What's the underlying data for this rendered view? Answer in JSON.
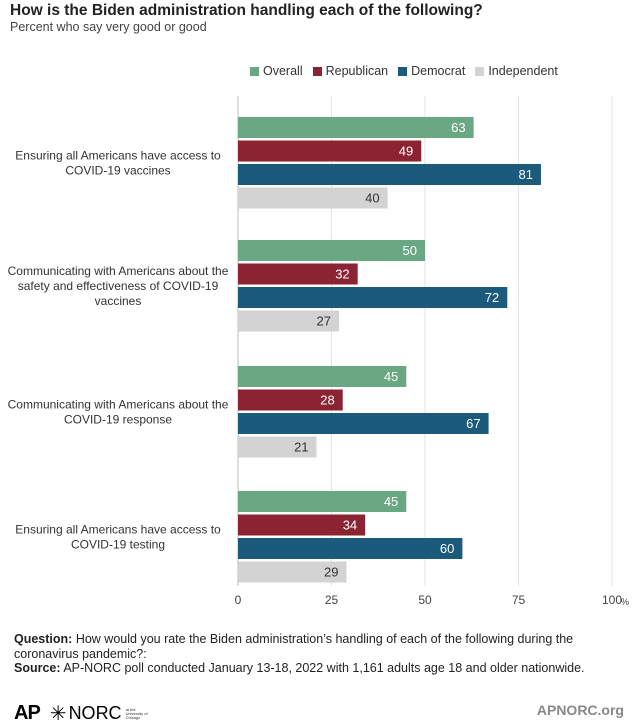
{
  "header": {
    "title": "How is the Biden administration handling each of the following?",
    "subtitle": "Percent who say very good or good"
  },
  "legend": [
    {
      "label": "Overall",
      "color": "#6aa884"
    },
    {
      "label": "Republican",
      "color": "#8b2332"
    },
    {
      "label": "Democrat",
      "color": "#1b5a7a"
    },
    {
      "label": "Independent",
      "color": "#d3d3d3"
    }
  ],
  "chart_data": {
    "type": "bar",
    "orientation": "horizontal",
    "categories": [
      [
        "Ensuring all Americans have access to",
        "COVID-19 vaccines"
      ],
      [
        "Communicating with Americans about the",
        "safety and effectiveness of COVID-19",
        "vaccines"
      ],
      [
        "Communicating with Americans about the",
        "COVID-19 response"
      ],
      [
        "Ensuring all Americans have access to",
        "COVID-19 testing"
      ]
    ],
    "series": [
      {
        "name": "Overall",
        "color": "#6aa884",
        "values": [
          63,
          50,
          45,
          45
        ]
      },
      {
        "name": "Republican",
        "color": "#8b2332",
        "values": [
          49,
          32,
          28,
          34
        ]
      },
      {
        "name": "Democrat",
        "color": "#1b5a7a",
        "values": [
          81,
          72,
          67,
          60
        ]
      },
      {
        "name": "Independent",
        "color": "#d3d3d3",
        "values": [
          40,
          27,
          21,
          29
        ]
      }
    ],
    "xlim": [
      0,
      100
    ],
    "xticks": [
      "0",
      "25",
      "50",
      "75",
      "100"
    ],
    "x_unit": "%",
    "grid": true,
    "data_labels": true,
    "legend_position": "top"
  },
  "footer": {
    "question_label": "Question:",
    "question_text": "How would you rate the Biden administration’s handling of each of the following during the coronavirus pandemic?:",
    "source_label": "Source:",
    "source_text": "AP-NORC poll conducted January 13-18, 2022 with 1,161 adults age 18 and older nationwide.",
    "logo_ap": "AP",
    "logo_norc": "NORC",
    "logo_norc_sub": "at the University of Chicago",
    "site": "APNORC.org"
  }
}
